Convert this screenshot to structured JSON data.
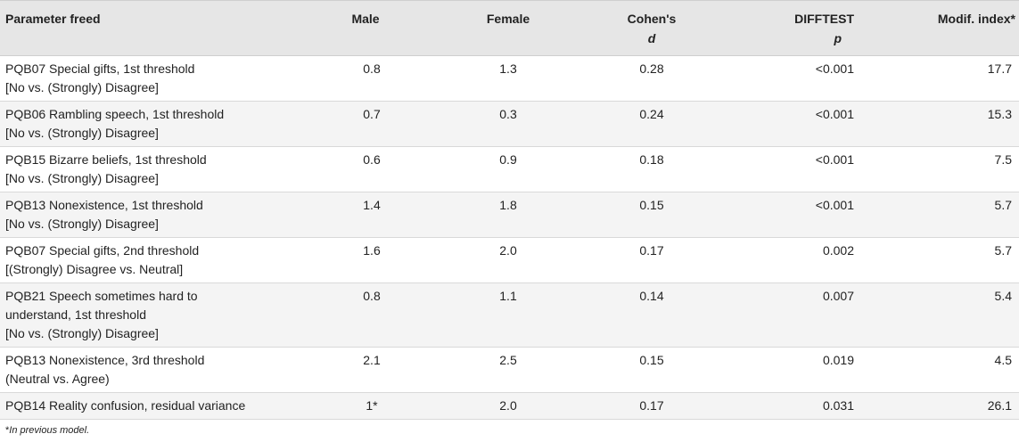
{
  "columns": {
    "parameter": "Parameter freed",
    "male": "Male",
    "female": "Female",
    "cohens_line1": "Cohen's",
    "cohens_line2": "d",
    "difftest_line1": "DIFFTEST",
    "difftest_line2": "p",
    "modif_index": "Modif. index*"
  },
  "rows": [
    {
      "param_line1": "PQB07 Special gifts, 1st threshold",
      "param_line2": "[No vs. (Strongly) Disagree]",
      "param_line3": "",
      "male": "0.8",
      "female": "1.3",
      "cohens_d": "0.28",
      "difftest_p": "<0.001",
      "modif_index": "17.7"
    },
    {
      "param_line1": "PQB06 Rambling speech, 1st threshold",
      "param_line2": "[No vs. (Strongly) Disagree]",
      "param_line3": "",
      "male": "0.7",
      "female": "0.3",
      "cohens_d": "0.24",
      "difftest_p": "<0.001",
      "modif_index": "15.3"
    },
    {
      "param_line1": "PQB15 Bizarre beliefs, 1st threshold",
      "param_line2": "[No vs. (Strongly) Disagree]",
      "param_line3": "",
      "male": "0.6",
      "female": "0.9",
      "cohens_d": "0.18",
      "difftest_p": "<0.001",
      "modif_index": "7.5"
    },
    {
      "param_line1": "PQB13 Nonexistence, 1st threshold",
      "param_line2": "[No vs. (Strongly) Disagree]",
      "param_line3": "",
      "male": "1.4",
      "female": "1.8",
      "cohens_d": "0.15",
      "difftest_p": "<0.001",
      "modif_index": "5.7"
    },
    {
      "param_line1": "PQB07 Special gifts, 2nd threshold",
      "param_line2": "[(Strongly) Disagree vs. Neutral]",
      "param_line3": "",
      "male": "1.6",
      "female": "2.0",
      "cohens_d": "0.17",
      "difftest_p": "0.002",
      "modif_index": "5.7"
    },
    {
      "param_line1": "PQB21 Speech sometimes hard to",
      "param_line2": "understand, 1st threshold",
      "param_line3": "[No vs. (Strongly) Disagree]",
      "male": "0.8",
      "female": "1.1",
      "cohens_d": "0.14",
      "difftest_p": "0.007",
      "modif_index": "5.4"
    },
    {
      "param_line1": "PQB13 Nonexistence, 3rd threshold",
      "param_line2": "(Neutral vs. Agree)",
      "param_line3": "",
      "male": "2.1",
      "female": "2.5",
      "cohens_d": "0.15",
      "difftest_p": "0.019",
      "modif_index": "4.5"
    },
    {
      "param_line1": "PQB14 Reality confusion, residual variance",
      "param_line2": "",
      "param_line3": "",
      "male": "1*",
      "female": "2.0",
      "cohens_d": "0.17",
      "difftest_p": "0.031",
      "modif_index": "26.1"
    }
  ],
  "footnote": {
    "star": "*",
    "text": "In previous model."
  }
}
